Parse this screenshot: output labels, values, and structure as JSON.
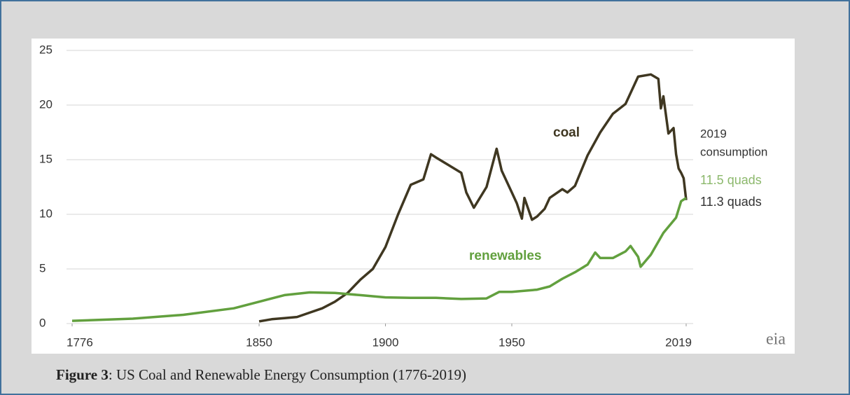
{
  "chart_data": {
    "type": "line",
    "xlim": [
      1776,
      2019
    ],
    "xticks": [
      1776,
      1850,
      1900,
      1950,
      2019
    ],
    "ylim": [
      0,
      25
    ],
    "yticks": [
      0,
      5,
      10,
      15,
      20,
      25
    ],
    "grid": true,
    "series": [
      {
        "name": "coal",
        "color": "#3f3721",
        "x": [
          1850,
          1855,
          1860,
          1865,
          1870,
          1875,
          1880,
          1885,
          1890,
          1895,
          1900,
          1905,
          1910,
          1915,
          1918,
          1920,
          1925,
          1930,
          1932,
          1935,
          1940,
          1944,
          1946,
          1950,
          1952,
          1954,
          1955,
          1958,
          1960,
          1963,
          1965,
          1970,
          1972,
          1975,
          1980,
          1985,
          1990,
          1995,
          2000,
          2005,
          2008,
          2009,
          2010,
          2012,
          2014,
          2015,
          2016,
          2017,
          2018,
          2019
        ],
        "values": [
          0.2,
          0.4,
          0.5,
          0.6,
          1.0,
          1.4,
          2.0,
          2.8,
          4.0,
          5.0,
          7.0,
          10.0,
          12.7,
          13.2,
          15.5,
          15.2,
          14.5,
          13.8,
          12.0,
          10.6,
          12.5,
          16.0,
          14.0,
          12.0,
          11.0,
          9.6,
          11.5,
          9.5,
          9.8,
          10.5,
          11.5,
          12.3,
          12.0,
          12.6,
          15.4,
          17.5,
          19.2,
          20.1,
          22.6,
          22.8,
          22.4,
          19.7,
          20.8,
          17.4,
          17.9,
          15.5,
          14.2,
          13.8,
          13.3,
          11.3
        ]
      },
      {
        "name": "renewables",
        "color": "#62a03e",
        "x": [
          1776,
          1800,
          1820,
          1840,
          1850,
          1860,
          1870,
          1880,
          1890,
          1900,
          1910,
          1920,
          1930,
          1940,
          1945,
          1950,
          1960,
          1965,
          1970,
          1975,
          1980,
          1983,
          1985,
          1990,
          1995,
          1997,
          2000,
          2001,
          2005,
          2010,
          2015,
          2017,
          2019
        ],
        "values": [
          0.25,
          0.45,
          0.8,
          1.4,
          2.0,
          2.6,
          2.85,
          2.8,
          2.6,
          2.4,
          2.35,
          2.35,
          2.25,
          2.3,
          2.9,
          2.9,
          3.1,
          3.4,
          4.1,
          4.7,
          5.4,
          6.5,
          6.0,
          6.0,
          6.6,
          7.1,
          6.1,
          5.2,
          6.3,
          8.3,
          9.7,
          11.2,
          11.5
        ]
      }
    ],
    "annotations": [
      "coal",
      "renewables",
      "2019",
      "consumption",
      "11.5 quads",
      "11.3 quads"
    ],
    "logo": "eia"
  },
  "caption": {
    "label": "Figure 3",
    "text": ": US Coal and Renewable Energy Consumption (1776-2019)"
  }
}
